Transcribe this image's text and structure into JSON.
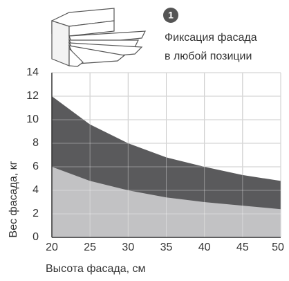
{
  "chart_data": {
    "type": "area",
    "annotation": {
      "number": "1",
      "lines": [
        "Фиксация фасада",
        "в любой позиции"
      ]
    },
    "x_label": "Высота фасада, см",
    "y_label": "Вес фасада, кг",
    "x": [
      20,
      25,
      30,
      35,
      40,
      45,
      50
    ],
    "series": [
      {
        "color": "#5a5a5c",
        "values": [
          12,
          9.6,
          8,
          6.8,
          6,
          5.3,
          4.8
        ]
      },
      {
        "color": "#c2c2c4",
        "values": [
          6,
          4.8,
          4,
          3.4,
          3,
          2.7,
          2.4
        ]
      }
    ],
    "xlim": [
      20,
      50
    ],
    "xticks": [
      20,
      25,
      30,
      35,
      40,
      45,
      50
    ],
    "ylim": [
      0,
      14
    ],
    "yticks": [
      0,
      2,
      4,
      6,
      8,
      10,
      12,
      14
    ],
    "grid": true
  }
}
